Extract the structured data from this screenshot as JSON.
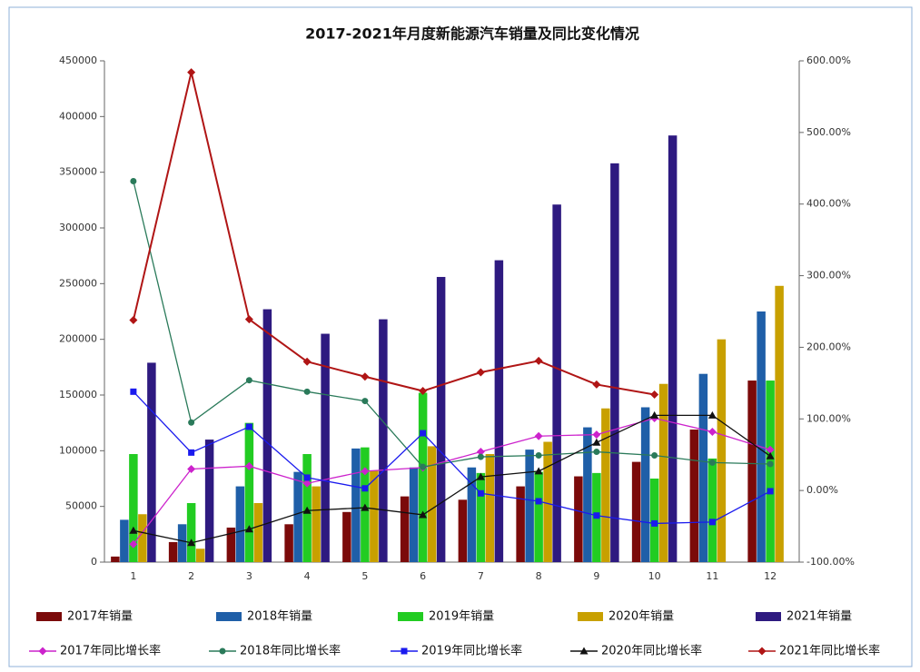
{
  "chart_data": {
    "type": "bar",
    "title": "2017-2021年月度新能源汽车销量及同比变化情况",
    "categories": [
      "1",
      "2",
      "3",
      "4",
      "5",
      "6",
      "7",
      "8",
      "9",
      "10",
      "11",
      "12"
    ],
    "ylim": [
      0,
      450000
    ],
    "yticks": [
      0,
      50000,
      100000,
      150000,
      200000,
      250000,
      300000,
      350000,
      400000,
      450000
    ],
    "y2lim": [
      -100,
      600
    ],
    "y2ticks": [
      {
        "value": -100,
        "label": "-100.00%"
      },
      {
        "value": 0,
        "label": "0.00%"
      },
      {
        "value": 100,
        "label": "100.00%"
      },
      {
        "value": 200,
        "label": "200.00%"
      },
      {
        "value": 300,
        "label": "300.00%"
      },
      {
        "value": 400,
        "label": "400.00%"
      },
      {
        "value": 500,
        "label": "500.00%"
      },
      {
        "value": 600,
        "label": "600.00%"
      }
    ],
    "series": [
      {
        "name": "2017年销量",
        "type": "bar",
        "color": "#7b0a0a",
        "values": [
          5000,
          18000,
          31000,
          34000,
          45000,
          59000,
          56000,
          68000,
          77000,
          90000,
          119000,
          163000
        ]
      },
      {
        "name": "2018年销量",
        "type": "bar",
        "color": "#1f5fa8",
        "values": [
          38000,
          34000,
          68000,
          81000,
          102000,
          85000,
          85000,
          101000,
          121000,
          139000,
          169000,
          225000
        ]
      },
      {
        "name": "2019年销量",
        "type": "bar",
        "color": "#22cc22",
        "values": [
          97000,
          53000,
          125000,
          97000,
          103000,
          152000,
          80000,
          81000,
          80000,
          75000,
          93000,
          163000
        ]
      },
      {
        "name": "2020年销量",
        "type": "bar",
        "color": "#c8a000",
        "values": [
          43000,
          12000,
          53000,
          68000,
          82000,
          104000,
          97000,
          108000,
          138000,
          160000,
          200000,
          248000
        ]
      },
      {
        "name": "2021年销量",
        "type": "bar",
        "color": "#2e1a80",
        "values": [
          179000,
          110000,
          227000,
          205000,
          218000,
          256000,
          271000,
          321000,
          358000,
          383000,
          null,
          null
        ]
      },
      {
        "name": "2017年同比增长率",
        "type": "line",
        "axis": "y2",
        "marker": "diamond",
        "color": "#cc22cc",
        "values": [
          -75,
          30,
          34,
          10,
          27,
          32,
          54,
          76,
          78,
          101,
          82,
          57
        ]
      },
      {
        "name": "2018年同比增长率",
        "type": "line",
        "axis": "y2",
        "marker": "circle",
        "color": "#2a7a5a",
        "values": [
          432,
          95,
          154,
          138,
          125,
          33,
          47,
          49,
          54,
          49,
          39,
          37
        ]
      },
      {
        "name": "2019年同比增长率",
        "type": "line",
        "axis": "y2",
        "marker": "square",
        "color": "#1a1aee",
        "values": [
          138,
          53,
          89,
          18,
          3,
          80,
          -4,
          -15,
          -35,
          -46,
          -44,
          -1
        ]
      },
      {
        "name": "2020年同比增长率",
        "type": "line",
        "axis": "y2",
        "marker": "triangle",
        "color": "#111111",
        "values": [
          -56,
          -73,
          -54,
          -28,
          -24,
          -34,
          19,
          27,
          67,
          105,
          105,
          48
        ]
      },
      {
        "name": "2021年同比增长率",
        "type": "line",
        "axis": "y2",
        "marker": "diamond",
        "color": "#b01515",
        "values": [
          238,
          584,
          239,
          180,
          159,
          139,
          165,
          181,
          148,
          134,
          null,
          null
        ]
      }
    ]
  }
}
